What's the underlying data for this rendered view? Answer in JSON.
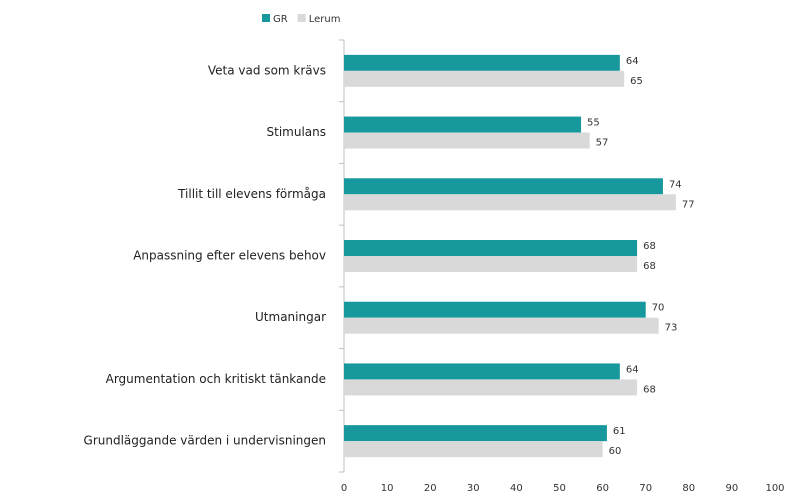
{
  "chart_data": {
    "type": "bar",
    "orientation": "horizontal",
    "categories": [
      "Veta vad som krävs",
      "Stimulans",
      "Tillit till elevens förmåga",
      "Anpassning efter elevens behov",
      "Utmaningar",
      "Argumentation och kritiskt tänkande",
      "Grundläggande värden i undervisningen"
    ],
    "series": [
      {
        "name": "GR",
        "color": "#17989d",
        "values": [
          64,
          55,
          74,
          68,
          70,
          64,
          61
        ]
      },
      {
        "name": "Lerum",
        "color": "#d9d9d9",
        "values": [
          65,
          57,
          77,
          68,
          73,
          68,
          60
        ]
      }
    ],
    "xlim": [
      0,
      100
    ],
    "xticks": [
      0,
      10,
      20,
      30,
      40,
      50,
      60,
      70,
      80,
      90,
      100
    ],
    "legend": "top",
    "grid": false
  }
}
